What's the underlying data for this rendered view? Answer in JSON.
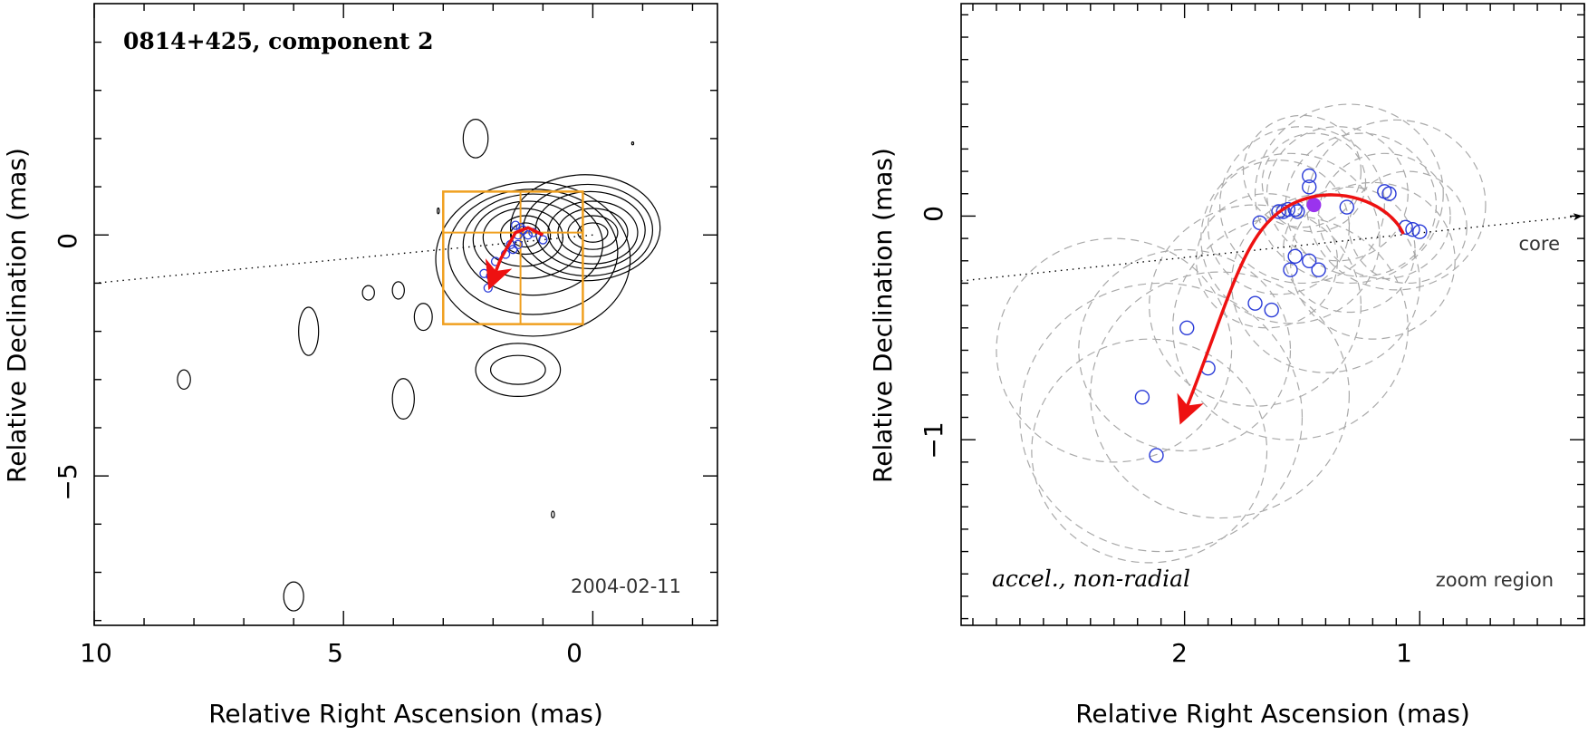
{
  "chart_data": [
    {
      "type": "scatter",
      "title": "0814+425, component 2",
      "epoch_label": "2004-02-11",
      "xlabel": "Relative Right Ascension (mas)",
      "ylabel": "Relative Declination (mas)",
      "xlim": [
        10.0,
        -2.5
      ],
      "ylim": [
        -8.1,
        4.8
      ],
      "x_ticks": [
        10,
        5,
        0
      ],
      "y_ticks": [
        0,
        -5
      ],
      "core": [
        0,
        0
      ],
      "direction_line": {
        "from": [
          0,
          0
        ],
        "to": [
          10,
          -1.0
        ]
      },
      "zoom_box": {
        "ra": [
          3.0,
          0.2
        ],
        "dec": [
          -1.85,
          0.9
        ],
        "cross_ra": 1.45,
        "cross_dec": 0.05
      },
      "contours": [
        {
          "c": [
            0.0,
            0.05
          ],
          "r": [
            0.3,
            0.2
          ]
        },
        {
          "c": [
            0.0,
            0.05
          ],
          "r": [
            0.5,
            0.35
          ]
        },
        {
          "c": [
            0.0,
            0.05
          ],
          "r": [
            0.7,
            0.5
          ]
        },
        {
          "c": [
            0.0,
            0.05
          ],
          "r": [
            0.9,
            0.65
          ]
        },
        {
          "c": [
            0.05,
            0.1
          ],
          "r": [
            1.1,
            0.8
          ]
        },
        {
          "c": [
            0.1,
            0.1
          ],
          "r": [
            1.3,
            0.95
          ]
        },
        {
          "c": [
            0.15,
            0.15
          ],
          "r": [
            1.5,
            1.1
          ]
        },
        {
          "c": [
            1.35,
            0.0
          ],
          "r": [
            0.3,
            0.25
          ]
        },
        {
          "c": [
            1.35,
            0.0
          ],
          "r": [
            0.5,
            0.4
          ]
        },
        {
          "c": [
            1.4,
            -0.05
          ],
          "r": [
            0.8,
            0.6
          ]
        },
        {
          "c": [
            1.3,
            -0.1
          ],
          "r": [
            1.1,
            0.8
          ]
        },
        {
          "c": [
            1.2,
            -0.2
          ],
          "r": [
            1.4,
            1.05
          ]
        },
        {
          "c": [
            1.2,
            -0.35
          ],
          "r": [
            1.7,
            1.3
          ]
        },
        {
          "c": [
            1.2,
            -0.5
          ],
          "r": [
            1.95,
            1.6
          ]
        },
        {
          "c": [
            1.5,
            -2.8
          ],
          "r": [
            0.55,
            0.3
          ]
        },
        {
          "c": [
            1.5,
            -2.8
          ],
          "r": [
            0.85,
            0.55
          ]
        },
        {
          "c": [
            2.35,
            2.0
          ],
          "r": [
            0.25,
            0.4
          ]
        },
        {
          "c": [
            5.7,
            -2.0
          ],
          "r": [
            0.2,
            0.5
          ]
        },
        {
          "c": [
            3.4,
            -1.7
          ],
          "r": [
            0.18,
            0.28
          ]
        },
        {
          "c": [
            3.9,
            -1.15
          ],
          "r": [
            0.12,
            0.18
          ]
        },
        {
          "c": [
            4.5,
            -1.2
          ],
          "r": [
            0.12,
            0.15
          ]
        },
        {
          "c": [
            3.8,
            -3.4
          ],
          "r": [
            0.22,
            0.42
          ]
        },
        {
          "c": [
            8.2,
            -3.0
          ],
          "r": [
            0.13,
            0.2
          ]
        },
        {
          "c": [
            6.0,
            -7.5
          ],
          "r": [
            0.2,
            0.3
          ]
        },
        {
          "c": [
            0.8,
            -5.8
          ],
          "r": [
            0.03,
            0.07
          ]
        },
        {
          "c": [
            3.1,
            0.5
          ],
          "r": [
            0.02,
            0.06
          ]
        },
        {
          "c": [
            -0.8,
            1.9
          ],
          "r": [
            0.02,
            0.03
          ]
        }
      ],
      "component_positions": [
        [
          2.05,
          -0.85
        ],
        [
          2.18,
          -0.8
        ],
        [
          2.1,
          -1.1
        ],
        [
          1.95,
          -0.55
        ],
        [
          1.6,
          -0.3
        ],
        [
          1.75,
          -0.4
        ],
        [
          1.65,
          -0.2
        ],
        [
          1.5,
          -0.2
        ],
        [
          1.5,
          0.0
        ],
        [
          1.4,
          0.1
        ],
        [
          1.3,
          0.0
        ],
        [
          1.2,
          0.05
        ],
        [
          1.0,
          -0.1
        ],
        [
          1.55,
          0.2
        ],
        [
          1.45,
          0.15
        ]
      ],
      "trajectory": [
        [
          1.0,
          0.0
        ],
        [
          1.3,
          0.15
        ],
        [
          1.55,
          0.05
        ],
        [
          1.85,
          -0.5
        ],
        [
          2.0,
          -0.9
        ]
      ]
    },
    {
      "type": "scatter",
      "annotation": "accel., non-radial",
      "region_label": "zoom region",
      "core_label": "core",
      "xlabel": "Relative Right Ascension (mas)",
      "ylabel": "Relative Declination (mas)",
      "xlim": [
        2.95,
        0.3
      ],
      "ylim": [
        -1.83,
        0.95
      ],
      "x_ticks": [
        2,
        1
      ],
      "y_ticks": [
        0,
        -1
      ],
      "direction_line": {
        "from": [
          2.95,
          -0.29
        ],
        "to": [
          0.3,
          0.0
        ]
      },
      "component_positions": [
        [
          1.68,
          -0.03
        ],
        [
          1.6,
          0.02
        ],
        [
          1.58,
          0.02
        ],
        [
          1.56,
          0.03
        ],
        [
          1.53,
          0.03
        ],
        [
          1.52,
          0.02
        ],
        [
          1.47,
          0.18
        ],
        [
          1.47,
          0.13
        ],
        [
          1.31,
          0.04
        ],
        [
          1.15,
          0.11
        ],
        [
          1.13,
          0.1
        ],
        [
          1.06,
          -0.05
        ],
        [
          1.03,
          -0.06
        ],
        [
          1.0,
          -0.07
        ],
        [
          1.53,
          -0.18
        ],
        [
          1.47,
          -0.2
        ],
        [
          1.43,
          -0.24
        ],
        [
          1.55,
          -0.24
        ],
        [
          1.7,
          -0.39
        ],
        [
          1.63,
          -0.42
        ],
        [
          1.99,
          -0.5
        ],
        [
          1.9,
          -0.68
        ],
        [
          2.18,
          -0.81
        ],
        [
          2.12,
          -1.07
        ]
      ],
      "highlight_position": [
        1.45,
        0.05
      ],
      "beam_circles": [
        [
          1.6,
          -0.05,
          0.3
        ],
        [
          1.5,
          0.05,
          0.35
        ],
        [
          1.35,
          0.1,
          0.3
        ],
        [
          1.25,
          0.05,
          0.32
        ],
        [
          1.15,
          0.0,
          0.28
        ],
        [
          1.05,
          -0.05,
          0.25
        ],
        [
          1.45,
          0.15,
          0.22
        ],
        [
          1.3,
          0.1,
          0.4
        ],
        [
          1.55,
          -0.1,
          0.38
        ],
        [
          1.2,
          -0.2,
          0.35
        ],
        [
          1.4,
          -0.3,
          0.4
        ],
        [
          1.3,
          -0.15,
          0.28
        ],
        [
          1.65,
          -0.2,
          0.3
        ],
        [
          1.1,
          0.05,
          0.38
        ],
        [
          1.5,
          0.2,
          0.25
        ],
        [
          1.7,
          -0.4,
          0.45
        ],
        [
          1.55,
          -0.5,
          0.5
        ],
        [
          2.0,
          -0.6,
          0.45
        ],
        [
          1.85,
          -0.8,
          0.55
        ],
        [
          2.1,
          -0.9,
          0.6
        ],
        [
          2.15,
          -1.05,
          0.5
        ],
        [
          2.3,
          -0.6,
          0.5
        ]
      ],
      "trajectory": [
        [
          1.07,
          -0.08
        ],
        [
          1.12,
          0.05
        ],
        [
          1.35,
          0.16
        ],
        [
          1.55,
          0.05
        ],
        [
          1.8,
          -0.35
        ],
        [
          2.0,
          -0.88
        ]
      ]
    }
  ],
  "colors": {
    "zoom_box": "#f0a020",
    "trajectory": "#ee1111",
    "components": "#2a3bd8",
    "highlight": "#9a33ee",
    "beams": "#a9a9a9",
    "frame": "#000000"
  }
}
